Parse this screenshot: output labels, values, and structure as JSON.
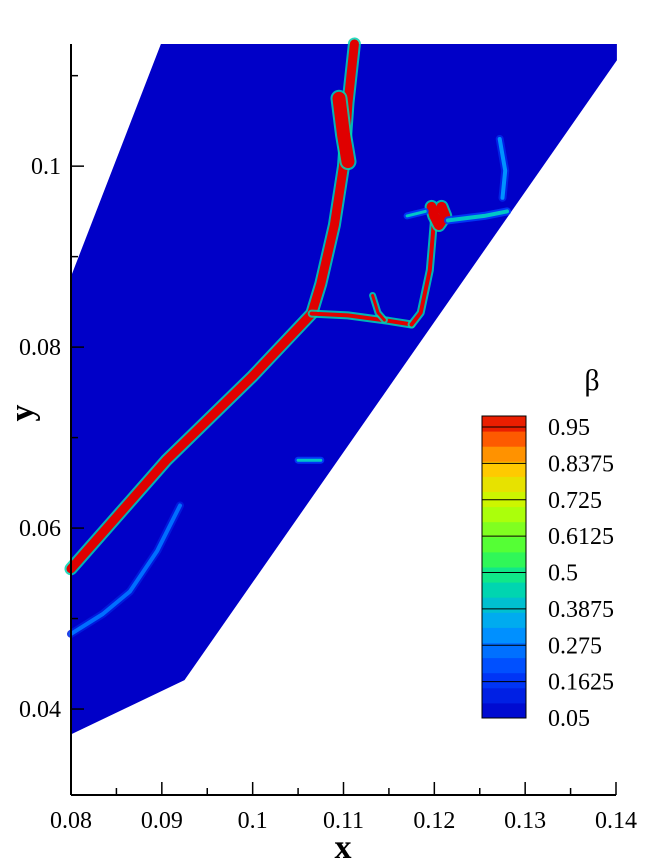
{
  "chart_data": {
    "type": "heatmap",
    "xlabel": "x",
    "ylabel": "y",
    "xlim": [
      0.08,
      0.14
    ],
    "ylim": [
      0.0305,
      0.1135
    ],
    "x_ticks": [
      "0.08",
      "0.09",
      "0.1",
      "0.11",
      "0.12",
      "0.13",
      "0.14"
    ],
    "x_tick_values": [
      0.08,
      0.09,
      0.1,
      0.11,
      0.12,
      0.13,
      0.14
    ],
    "y_ticks": [
      "0.04",
      "0.06",
      "0.08",
      "0.1"
    ],
    "y_tick_values": [
      0.04,
      0.06,
      0.08,
      0.1
    ],
    "colorbar": {
      "title": "β",
      "labels": [
        "0.95",
        "0.8375",
        "0.725",
        "0.6125",
        "0.5",
        "0.3875",
        "0.275",
        "0.1625",
        "0.05"
      ],
      "min": 0.05,
      "max": 0.95
    },
    "domain_outline": [
      [
        0.0899,
        0.1135
      ],
      [
        0.1401,
        0.1135
      ],
      [
        0.1401,
        0.1117
      ],
      [
        0.0925,
        0.0432
      ],
      [
        0.08,
        0.0372
      ],
      [
        0.08,
        0.0878
      ]
    ],
    "features": [
      {
        "points": [
          [
            0.08,
            0.0555
          ],
          [
            0.0905,
            0.0675
          ],
          [
            0.1,
            0.0768
          ],
          [
            0.1065,
            0.0837
          ],
          [
            0.1075,
            0.087
          ],
          [
            0.109,
            0.0935
          ],
          [
            0.11,
            0.1
          ],
          [
            0.1105,
            0.107
          ],
          [
            0.1112,
            0.1135
          ]
        ],
        "beta": 0.95,
        "width": 9
      },
      {
        "points": [
          [
            0.1065,
            0.0837
          ],
          [
            0.1105,
            0.0835
          ],
          [
            0.115,
            0.0829
          ],
          [
            0.1175,
            0.0825
          ]
        ],
        "beta": 0.95,
        "width": 4
      },
      {
        "points": [
          [
            0.1132,
            0.0857
          ],
          [
            0.1138,
            0.0838
          ],
          [
            0.1145,
            0.083
          ]
        ],
        "beta": 0.95,
        "width": 3
      },
      {
        "points": [
          [
            0.1175,
            0.0825
          ],
          [
            0.1185,
            0.0838
          ],
          [
            0.1195,
            0.0885
          ],
          [
            0.1198,
            0.092
          ],
          [
            0.12,
            0.0945
          ]
        ],
        "beta": 0.95,
        "width": 4
      },
      {
        "points": [
          [
            0.1197,
            0.0955
          ],
          [
            0.12,
            0.0945
          ],
          [
            0.1205,
            0.0935
          ],
          [
            0.1212,
            0.0945
          ],
          [
            0.1208,
            0.0955
          ]
        ],
        "beta": 0.95,
        "width": 10
      },
      {
        "points": [
          [
            0.1095,
            0.1075
          ],
          [
            0.11,
            0.1035
          ],
          [
            0.1105,
            0.1005
          ]
        ],
        "beta": 0.95,
        "width": 13
      },
      {
        "points": [
          [
            0.1215,
            0.094
          ],
          [
            0.1255,
            0.0945
          ],
          [
            0.128,
            0.095
          ]
        ],
        "beta": 0.4,
        "width": 4
      },
      {
        "points": [
          [
            0.1275,
            0.0965
          ],
          [
            0.1278,
            0.0995
          ],
          [
            0.1272,
            0.103
          ]
        ],
        "beta": 0.3,
        "width": 4
      },
      {
        "points": [
          [
            0.117,
            0.0945
          ],
          [
            0.119,
            0.095
          ]
        ],
        "beta": 0.4,
        "width": 3
      },
      {
        "points": [
          [
            0.08,
            0.0483
          ],
          [
            0.0835,
            0.0505
          ],
          [
            0.0865,
            0.053
          ],
          [
            0.0895,
            0.0575
          ],
          [
            0.092,
            0.0625
          ]
        ],
        "beta": 0.25,
        "width": 4
      },
      {
        "points": [
          [
            0.105,
            0.0675
          ],
          [
            0.1075,
            0.0675
          ]
        ],
        "beta": 0.4,
        "width": 3
      }
    ]
  }
}
